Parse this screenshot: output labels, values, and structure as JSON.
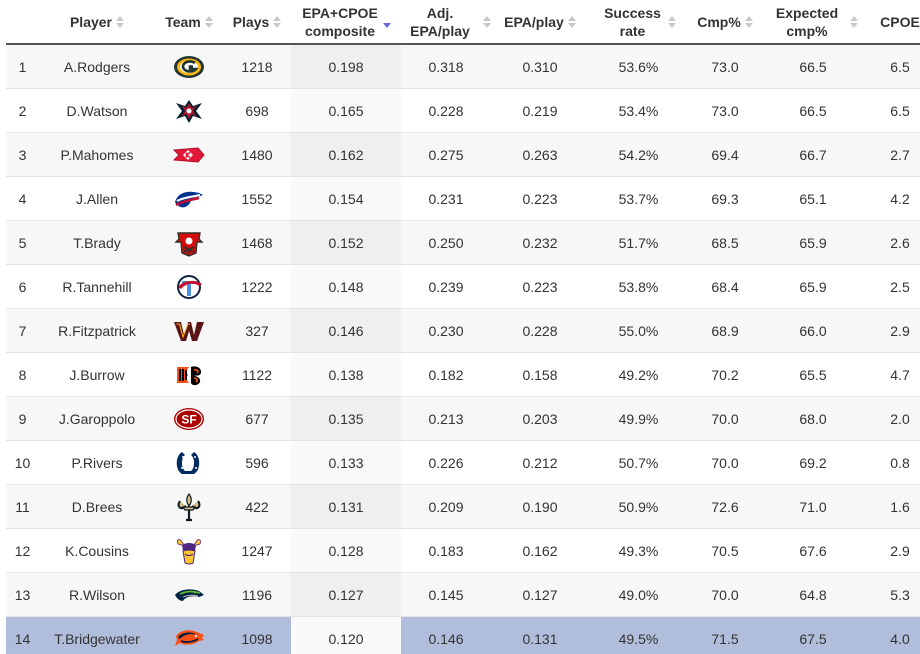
{
  "columns": [
    {
      "key": "rank",
      "label": ""
    },
    {
      "key": "player",
      "label": "Player"
    },
    {
      "key": "team",
      "label": "Team"
    },
    {
      "key": "plays",
      "label": "Plays"
    },
    {
      "key": "composite",
      "label": "EPA+CPOE composite"
    },
    {
      "key": "adj_epa",
      "label": "Adj. EPA/play"
    },
    {
      "key": "epa",
      "label": "EPA/play"
    },
    {
      "key": "success",
      "label": "Success rate"
    },
    {
      "key": "cmp",
      "label": "Cmp%"
    },
    {
      "key": "exp_cmp",
      "label": "Expected cmp%"
    },
    {
      "key": "cpoe",
      "label": "CPOE"
    }
  ],
  "sorted_column": "composite",
  "selected_row": 14,
  "colors": {
    "selected": "#b0bedc",
    "sort_active": "#6a6ad8"
  },
  "chart_data": {
    "type": "table",
    "columns": [
      "",
      "Player",
      "Team",
      "Plays",
      "EPA+CPOE composite",
      "Adj. EPA/play",
      "EPA/play",
      "Success rate",
      "Cmp%",
      "Expected cmp%",
      "CPOE"
    ],
    "rows": [
      {
        "rank": "1",
        "player": "A.Rodgers",
        "team": "packers-logo-icon",
        "plays": "1218",
        "composite": "0.198",
        "adj_epa": "0.318",
        "epa": "0.310",
        "success": "53.6%",
        "cmp": "73.0",
        "exp_cmp": "66.5",
        "cpoe": "6.5"
      },
      {
        "rank": "2",
        "player": "D.Watson",
        "team": "texans-logo-icon",
        "plays": "698",
        "composite": "0.165",
        "adj_epa": "0.228",
        "epa": "0.219",
        "success": "53.4%",
        "cmp": "73.0",
        "exp_cmp": "66.5",
        "cpoe": "6.5"
      },
      {
        "rank": "3",
        "player": "P.Mahomes",
        "team": "chiefs-logo-icon",
        "plays": "1480",
        "composite": "0.162",
        "adj_epa": "0.275",
        "epa": "0.263",
        "success": "54.2%",
        "cmp": "69.4",
        "exp_cmp": "66.7",
        "cpoe": "2.7"
      },
      {
        "rank": "4",
        "player": "J.Allen",
        "team": "bills-logo-icon",
        "plays": "1552",
        "composite": "0.154",
        "adj_epa": "0.231",
        "epa": "0.223",
        "success": "53.7%",
        "cmp": "69.3",
        "exp_cmp": "65.1",
        "cpoe": "4.2"
      },
      {
        "rank": "5",
        "player": "T.Brady",
        "team": "buccaneers-logo-icon",
        "plays": "1468",
        "composite": "0.152",
        "adj_epa": "0.250",
        "epa": "0.232",
        "success": "51.7%",
        "cmp": "68.5",
        "exp_cmp": "65.9",
        "cpoe": "2.6"
      },
      {
        "rank": "6",
        "player": "R.Tannehill",
        "team": "titans-logo-icon",
        "plays": "1222",
        "composite": "0.148",
        "adj_epa": "0.239",
        "epa": "0.223",
        "success": "53.8%",
        "cmp": "68.4",
        "exp_cmp": "65.9",
        "cpoe": "2.5"
      },
      {
        "rank": "7",
        "player": "R.Fitzpatrick",
        "team": "washington-logo-icon",
        "plays": "327",
        "composite": "0.146",
        "adj_epa": "0.230",
        "epa": "0.228",
        "success": "55.0%",
        "cmp": "68.9",
        "exp_cmp": "66.0",
        "cpoe": "2.9"
      },
      {
        "rank": "8",
        "player": "J.Burrow",
        "team": "bengals-logo-icon",
        "plays": "1122",
        "composite": "0.138",
        "adj_epa": "0.182",
        "epa": "0.158",
        "success": "49.2%",
        "cmp": "70.2",
        "exp_cmp": "65.5",
        "cpoe": "4.7"
      },
      {
        "rank": "9",
        "player": "J.Garoppolo",
        "team": "49ers-logo-icon",
        "plays": "677",
        "composite": "0.135",
        "adj_epa": "0.213",
        "epa": "0.203",
        "success": "49.9%",
        "cmp": "70.0",
        "exp_cmp": "68.0",
        "cpoe": "2.0"
      },
      {
        "rank": "10",
        "player": "P.Rivers",
        "team": "colts-logo-icon",
        "plays": "596",
        "composite": "0.133",
        "adj_epa": "0.226",
        "epa": "0.212",
        "success": "50.7%",
        "cmp": "70.0",
        "exp_cmp": "69.2",
        "cpoe": "0.8"
      },
      {
        "rank": "11",
        "player": "D.Brees",
        "team": "saints-logo-icon",
        "plays": "422",
        "composite": "0.131",
        "adj_epa": "0.209",
        "epa": "0.190",
        "success": "50.9%",
        "cmp": "72.6",
        "exp_cmp": "71.0",
        "cpoe": "1.6"
      },
      {
        "rank": "12",
        "player": "K.Cousins",
        "team": "vikings-logo-icon",
        "plays": "1247",
        "composite": "0.128",
        "adj_epa": "0.183",
        "epa": "0.162",
        "success": "49.3%",
        "cmp": "70.5",
        "exp_cmp": "67.6",
        "cpoe": "2.9"
      },
      {
        "rank": "13",
        "player": "R.Wilson",
        "team": "seahawks-logo-icon",
        "plays": "1196",
        "composite": "0.127",
        "adj_epa": "0.145",
        "epa": "0.127",
        "success": "49.0%",
        "cmp": "70.0",
        "exp_cmp": "64.8",
        "cpoe": "5.3"
      },
      {
        "rank": "14",
        "player": "T.Bridgewater",
        "team": "broncos-logo-icon",
        "plays": "1098",
        "composite": "0.120",
        "adj_epa": "0.146",
        "epa": "0.131",
        "success": "49.5%",
        "cmp": "71.5",
        "exp_cmp": "67.5",
        "cpoe": "4.0"
      }
    ]
  }
}
